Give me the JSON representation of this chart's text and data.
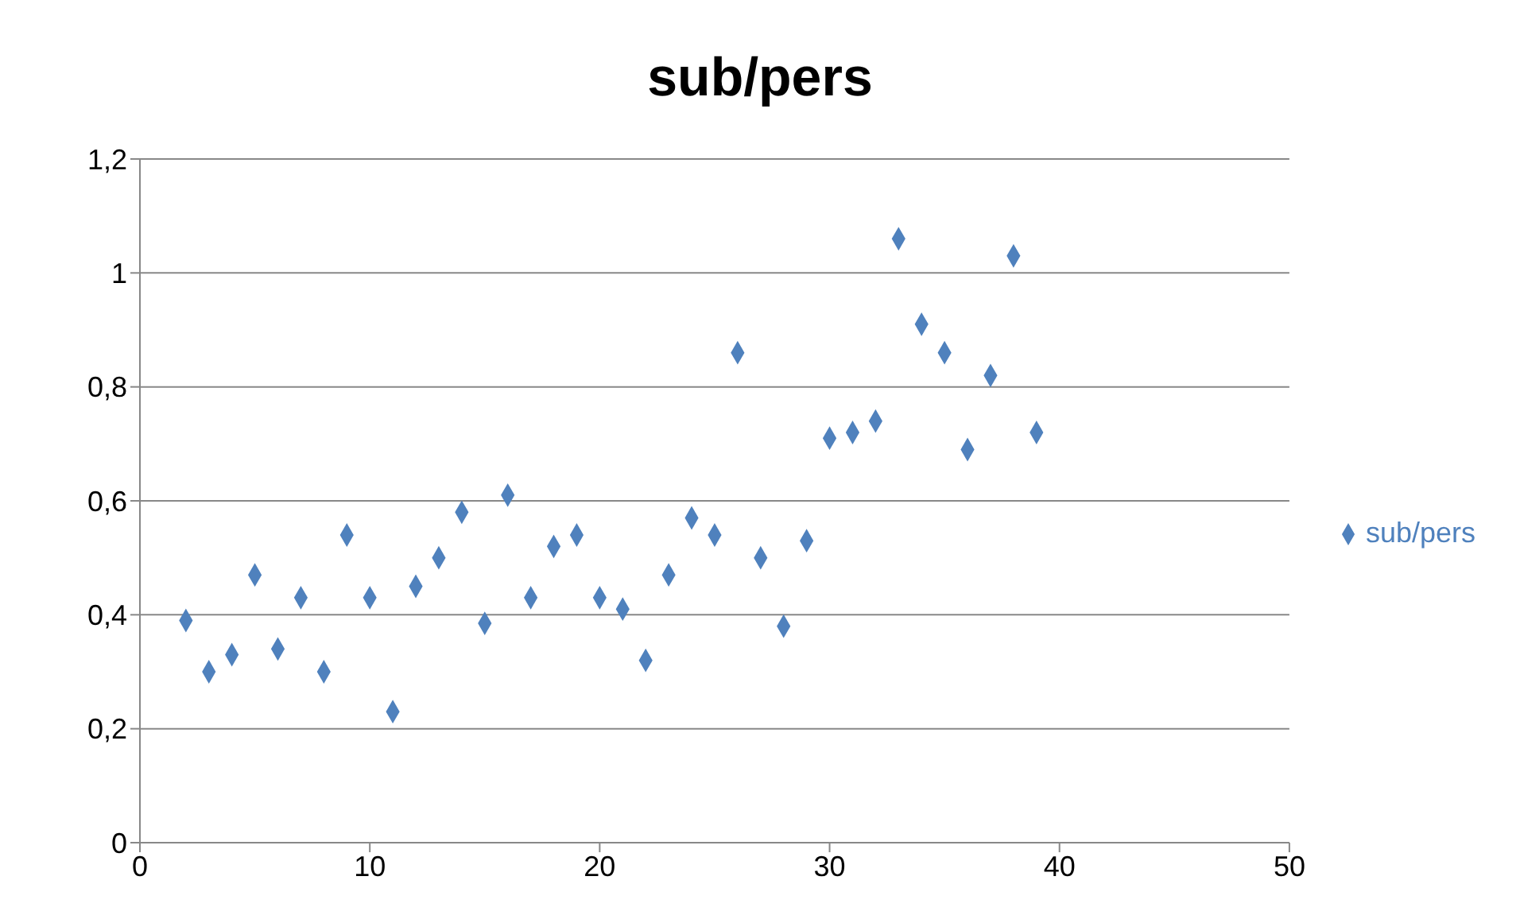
{
  "chart_data": {
    "type": "scatter",
    "title": "sub/pers",
    "x": [
      2,
      3,
      4,
      5,
      6,
      7,
      8,
      9,
      10,
      11,
      12,
      13,
      14,
      15,
      16,
      17,
      18,
      19,
      20,
      21,
      22,
      23,
      24,
      25,
      26,
      27,
      28,
      29,
      30,
      31,
      32,
      33,
      34,
      35,
      36,
      37,
      38,
      39
    ],
    "series": [
      {
        "name": "sub/pers",
        "color": "#4f81bd",
        "values": [
          0.39,
          0.3,
          0.33,
          0.47,
          0.34,
          0.43,
          0.3,
          0.54,
          0.43,
          0.23,
          0.45,
          0.5,
          0.58,
          0.385,
          0.61,
          0.43,
          0.52,
          0.54,
          0.43,
          0.41,
          0.32,
          0.47,
          0.57,
          0.54,
          0.86,
          0.5,
          0.38,
          0.53,
          0.71,
          0.72,
          0.74,
          1.06,
          0.91,
          0.86,
          0.69,
          0.82,
          1.03,
          0.72
        ]
      }
    ],
    "xlim": [
      0,
      50
    ],
    "xticks": [
      0,
      10,
      20,
      30,
      40,
      50
    ],
    "ylim": [
      0,
      1.2
    ],
    "yticks": [
      {
        "value": 0,
        "label": "0"
      },
      {
        "value": 0.2,
        "label": "0,2"
      },
      {
        "value": 0.4,
        "label": "0,4"
      },
      {
        "value": 0.6,
        "label": "0,6"
      },
      {
        "value": 0.8,
        "label": "0,8"
      },
      {
        "value": 1,
        "label": "1"
      },
      {
        "value": 1.2,
        "label": "1,2"
      }
    ],
    "grid": "y",
    "legend": "right",
    "marker": "diamond"
  }
}
